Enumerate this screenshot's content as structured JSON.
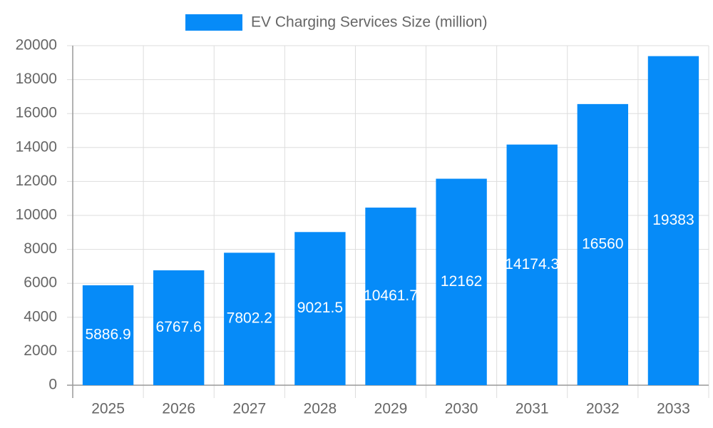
{
  "chart_data": {
    "type": "bar",
    "categories": [
      "2025",
      "2026",
      "2027",
      "2028",
      "2029",
      "2030",
      "2031",
      "2032",
      "2033"
    ],
    "series": [
      {
        "name": "EV Charging Services Size (million)",
        "color": "#068bf8",
        "values": [
          5886.9,
          6767.6,
          7802.2,
          9021.5,
          10461.7,
          12162,
          14174.3,
          16560,
          19383
        ]
      }
    ],
    "ylim": [
      0,
      20000
    ],
    "yticks": [
      0,
      2000,
      4000,
      6000,
      8000,
      10000,
      12000,
      14000,
      16000,
      18000,
      20000
    ],
    "grid": true,
    "legend": "top"
  }
}
